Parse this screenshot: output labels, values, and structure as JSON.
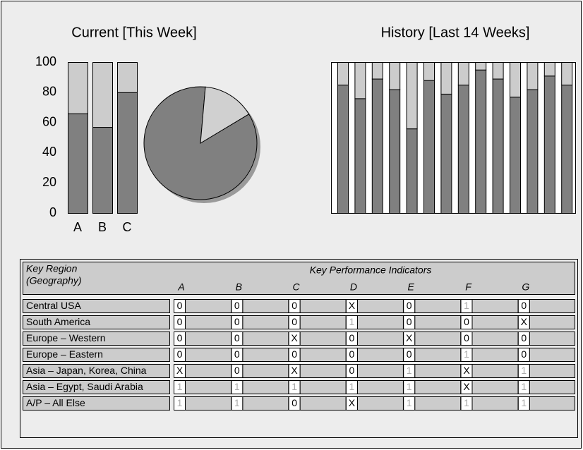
{
  "chart_data": [
    {
      "type": "bar",
      "title": "Current [This Week]",
      "categories": [
        "A",
        "B",
        "C"
      ],
      "stacked": true,
      "series": [
        {
          "color": "#808080",
          "values": [
            66,
            57,
            80
          ]
        },
        {
          "color": "#cccccc",
          "values": [
            34,
            43,
            20
          ]
        }
      ],
      "ylim": [
        0,
        100
      ],
      "yticks": [
        0,
        20,
        40,
        60,
        80,
        100
      ]
    },
    {
      "type": "pie",
      "values": [
        85,
        15
      ],
      "colors": [
        "#808080",
        "#d0d0d0"
      ]
    },
    {
      "type": "bar",
      "title": "History [Last 14 Weeks]",
      "stacked": true,
      "series": [
        {
          "color": "#808080",
          "values": [
            85,
            76,
            89,
            82,
            56,
            88,
            79,
            85,
            95,
            89,
            77,
            82,
            91,
            85
          ]
        },
        {
          "color": "#cccccc",
          "values": [
            15,
            24,
            11,
            18,
            44,
            12,
            21,
            15,
            5,
            11,
            23,
            18,
            9,
            15
          ]
        }
      ],
      "ylim": [
        0,
        100
      ]
    }
  ],
  "table": {
    "region_header": [
      "Key Region",
      "(Geography)"
    ],
    "kpi_title": "Key Performance Indicators",
    "columns": [
      "A",
      "B",
      "C",
      "D",
      "E",
      "F",
      "G"
    ],
    "rows": [
      {
        "region": "Central USA",
        "cells": [
          "0",
          "0",
          "0",
          "X",
          "0",
          "1",
          "0"
        ]
      },
      {
        "region": "South America",
        "cells": [
          "0",
          "0",
          "0",
          "1",
          "0",
          "0",
          "X"
        ]
      },
      {
        "region": "Europe – Western",
        "cells": [
          "0",
          "0",
          "X",
          "0",
          "X",
          "0",
          "0"
        ]
      },
      {
        "region": "Europe – Eastern",
        "cells": [
          "0",
          "0",
          "0",
          "0",
          "0",
          "1",
          "0"
        ]
      },
      {
        "region": "Asia – Japan, Korea, China",
        "cells": [
          "X",
          "0",
          "X",
          "0",
          "1",
          "X",
          "1"
        ]
      },
      {
        "region": "Asia – Egypt, Saudi Arabia",
        "cells": [
          "1",
          "1",
          "1",
          "1",
          "1",
          "X",
          "1"
        ]
      },
      {
        "region": "A/P – All Else",
        "cells": [
          "1",
          "1",
          "0",
          "X",
          "1",
          "1",
          "1"
        ]
      }
    ]
  }
}
